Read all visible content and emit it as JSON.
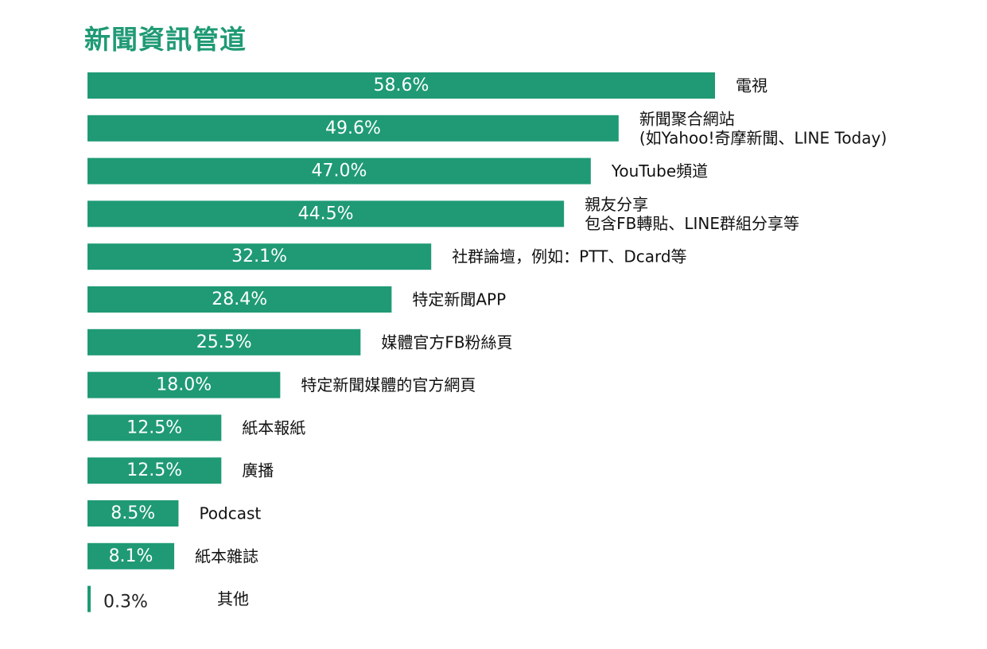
{
  "chart_data": {
    "type": "bar",
    "orientation": "horizontal",
    "title": "新聞資訊管道",
    "unit": "%",
    "colors": {
      "bar": "#1f9a74",
      "title": "#1f9a74",
      "value_inside": "#ffffff",
      "value_outside": "#222222",
      "label": "#111111"
    },
    "categories": [
      [
        "電視"
      ],
      [
        "新聞聚合網站",
        "(如Yahoo!奇摩新聞、LINE Today)"
      ],
      [
        "YouTube頻道"
      ],
      [
        "親友分享",
        "包含FB轉貼、LINE群組分享等"
      ],
      [
        "社群論壇，例如：PTT、Dcard等"
      ],
      [
        "特定新聞APP"
      ],
      [
        "媒體官方FB粉絲頁"
      ],
      [
        "特定新聞媒體的官方網頁"
      ],
      [
        "紙本報紙"
      ],
      [
        "廣播"
      ],
      [
        "Podcast"
      ],
      [
        "紙本雜誌"
      ],
      [
        "其他"
      ]
    ],
    "values": [
      58.6,
      49.6,
      47.0,
      44.5,
      32.1,
      28.4,
      25.5,
      18.0,
      12.5,
      12.5,
      8.5,
      8.1,
      0.3
    ],
    "value_labels": [
      "58.6%",
      "49.6%",
      "47.0%",
      "44.5%",
      "32.1%",
      "28.4%",
      "25.5%",
      "18.0%",
      "12.5%",
      "12.5%",
      "8.5%",
      "8.1%",
      "0.3%"
    ],
    "xlim": [
      0,
      58.6
    ],
    "grid": false,
    "legend": "none"
  }
}
